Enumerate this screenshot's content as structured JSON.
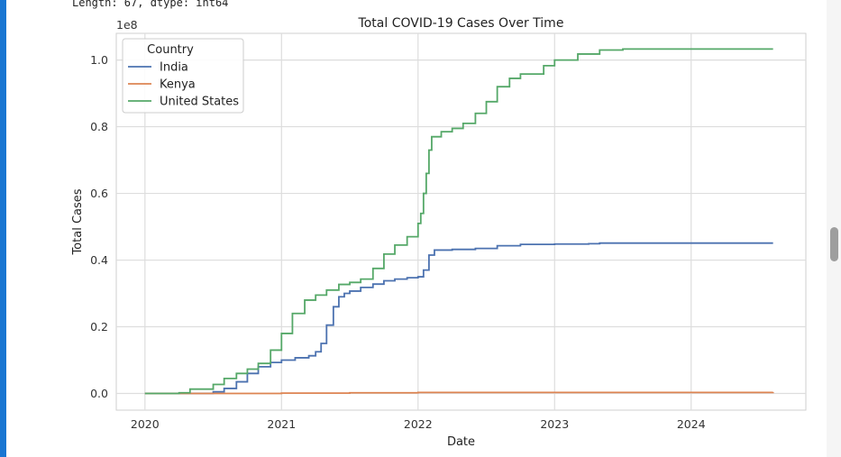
{
  "console": {
    "output_line": "Length: 67, dtype: int64"
  },
  "chart_data": {
    "type": "line",
    "title": "Total COVID-19 Cases Over Time",
    "xlabel": "Date",
    "ylabel": "Total Cases",
    "y_offset_text": "1e8",
    "y_scale_note": "values in units of 1e8",
    "xlim": [
      2019.79,
      2024.84
    ],
    "ylim": [
      -0.05,
      1.08
    ],
    "x_ticks": [
      2020,
      2021,
      2022,
      2023,
      2024
    ],
    "x_tick_labels": [
      "2020",
      "2021",
      "2022",
      "2023",
      "2024"
    ],
    "y_ticks": [
      0.0,
      0.2,
      0.4,
      0.6,
      0.8,
      1.0
    ],
    "y_tick_labels": [
      "0.0",
      "0.2",
      "0.4",
      "0.6",
      "0.8",
      "1.0"
    ],
    "grid": true,
    "legend": {
      "title": "Country",
      "position": "top-left"
    },
    "series": [
      {
        "name": "India",
        "color": "#4c72b0",
        "x": [
          2020.0,
          2020.25,
          2020.5,
          2020.58,
          2020.67,
          2020.75,
          2020.83,
          2020.92,
          2021.0,
          2021.1,
          2021.2,
          2021.25,
          2021.29,
          2021.33,
          2021.38,
          2021.42,
          2021.46,
          2021.5,
          2021.58,
          2021.67,
          2021.75,
          2021.83,
          2021.92,
          2022.0,
          2022.04,
          2022.08,
          2022.12,
          2022.25,
          2022.42,
          2022.58,
          2022.75,
          2023.0,
          2023.25,
          2023.33,
          2023.5,
          2024.0,
          2024.6
        ],
        "y": [
          0.0,
          0.0,
          0.005,
          0.015,
          0.035,
          0.06,
          0.08,
          0.093,
          0.1,
          0.107,
          0.113,
          0.125,
          0.15,
          0.205,
          0.26,
          0.29,
          0.3,
          0.307,
          0.318,
          0.328,
          0.338,
          0.343,
          0.347,
          0.35,
          0.37,
          0.415,
          0.43,
          0.432,
          0.435,
          0.443,
          0.447,
          0.448,
          0.449,
          0.451,
          0.451,
          0.451,
          0.451
        ]
      },
      {
        "name": "Kenya",
        "color": "#dd8452",
        "x": [
          2020.0,
          2020.5,
          2021.0,
          2021.5,
          2022.0,
          2023.0,
          2024.6
        ],
        "y": [
          0.0,
          0.0,
          0.001,
          0.002,
          0.003,
          0.003,
          0.004
        ]
      },
      {
        "name": "United States",
        "color": "#55a868",
        "x": [
          2020.0,
          2020.25,
          2020.33,
          2020.5,
          2020.58,
          2020.67,
          2020.75,
          2020.83,
          2020.92,
          2021.0,
          2021.08,
          2021.17,
          2021.25,
          2021.33,
          2021.42,
          2021.5,
          2021.58,
          2021.67,
          2021.75,
          2021.83,
          2021.92,
          2022.0,
          2022.02,
          2022.04,
          2022.06,
          2022.08,
          2022.1,
          2022.17,
          2022.25,
          2022.33,
          2022.42,
          2022.5,
          2022.58,
          2022.67,
          2022.75,
          2022.92,
          2023.0,
          2023.17,
          2023.33,
          2023.5,
          2024.0,
          2024.6
        ],
        "y": [
          0.0,
          0.002,
          0.013,
          0.027,
          0.045,
          0.06,
          0.073,
          0.09,
          0.13,
          0.18,
          0.24,
          0.28,
          0.295,
          0.31,
          0.327,
          0.333,
          0.343,
          0.375,
          0.418,
          0.445,
          0.47,
          0.51,
          0.54,
          0.6,
          0.66,
          0.73,
          0.77,
          0.785,
          0.795,
          0.81,
          0.84,
          0.875,
          0.92,
          0.945,
          0.958,
          0.983,
          1.0,
          1.018,
          1.03,
          1.033,
          1.033,
          1.033
        ]
      }
    ]
  }
}
